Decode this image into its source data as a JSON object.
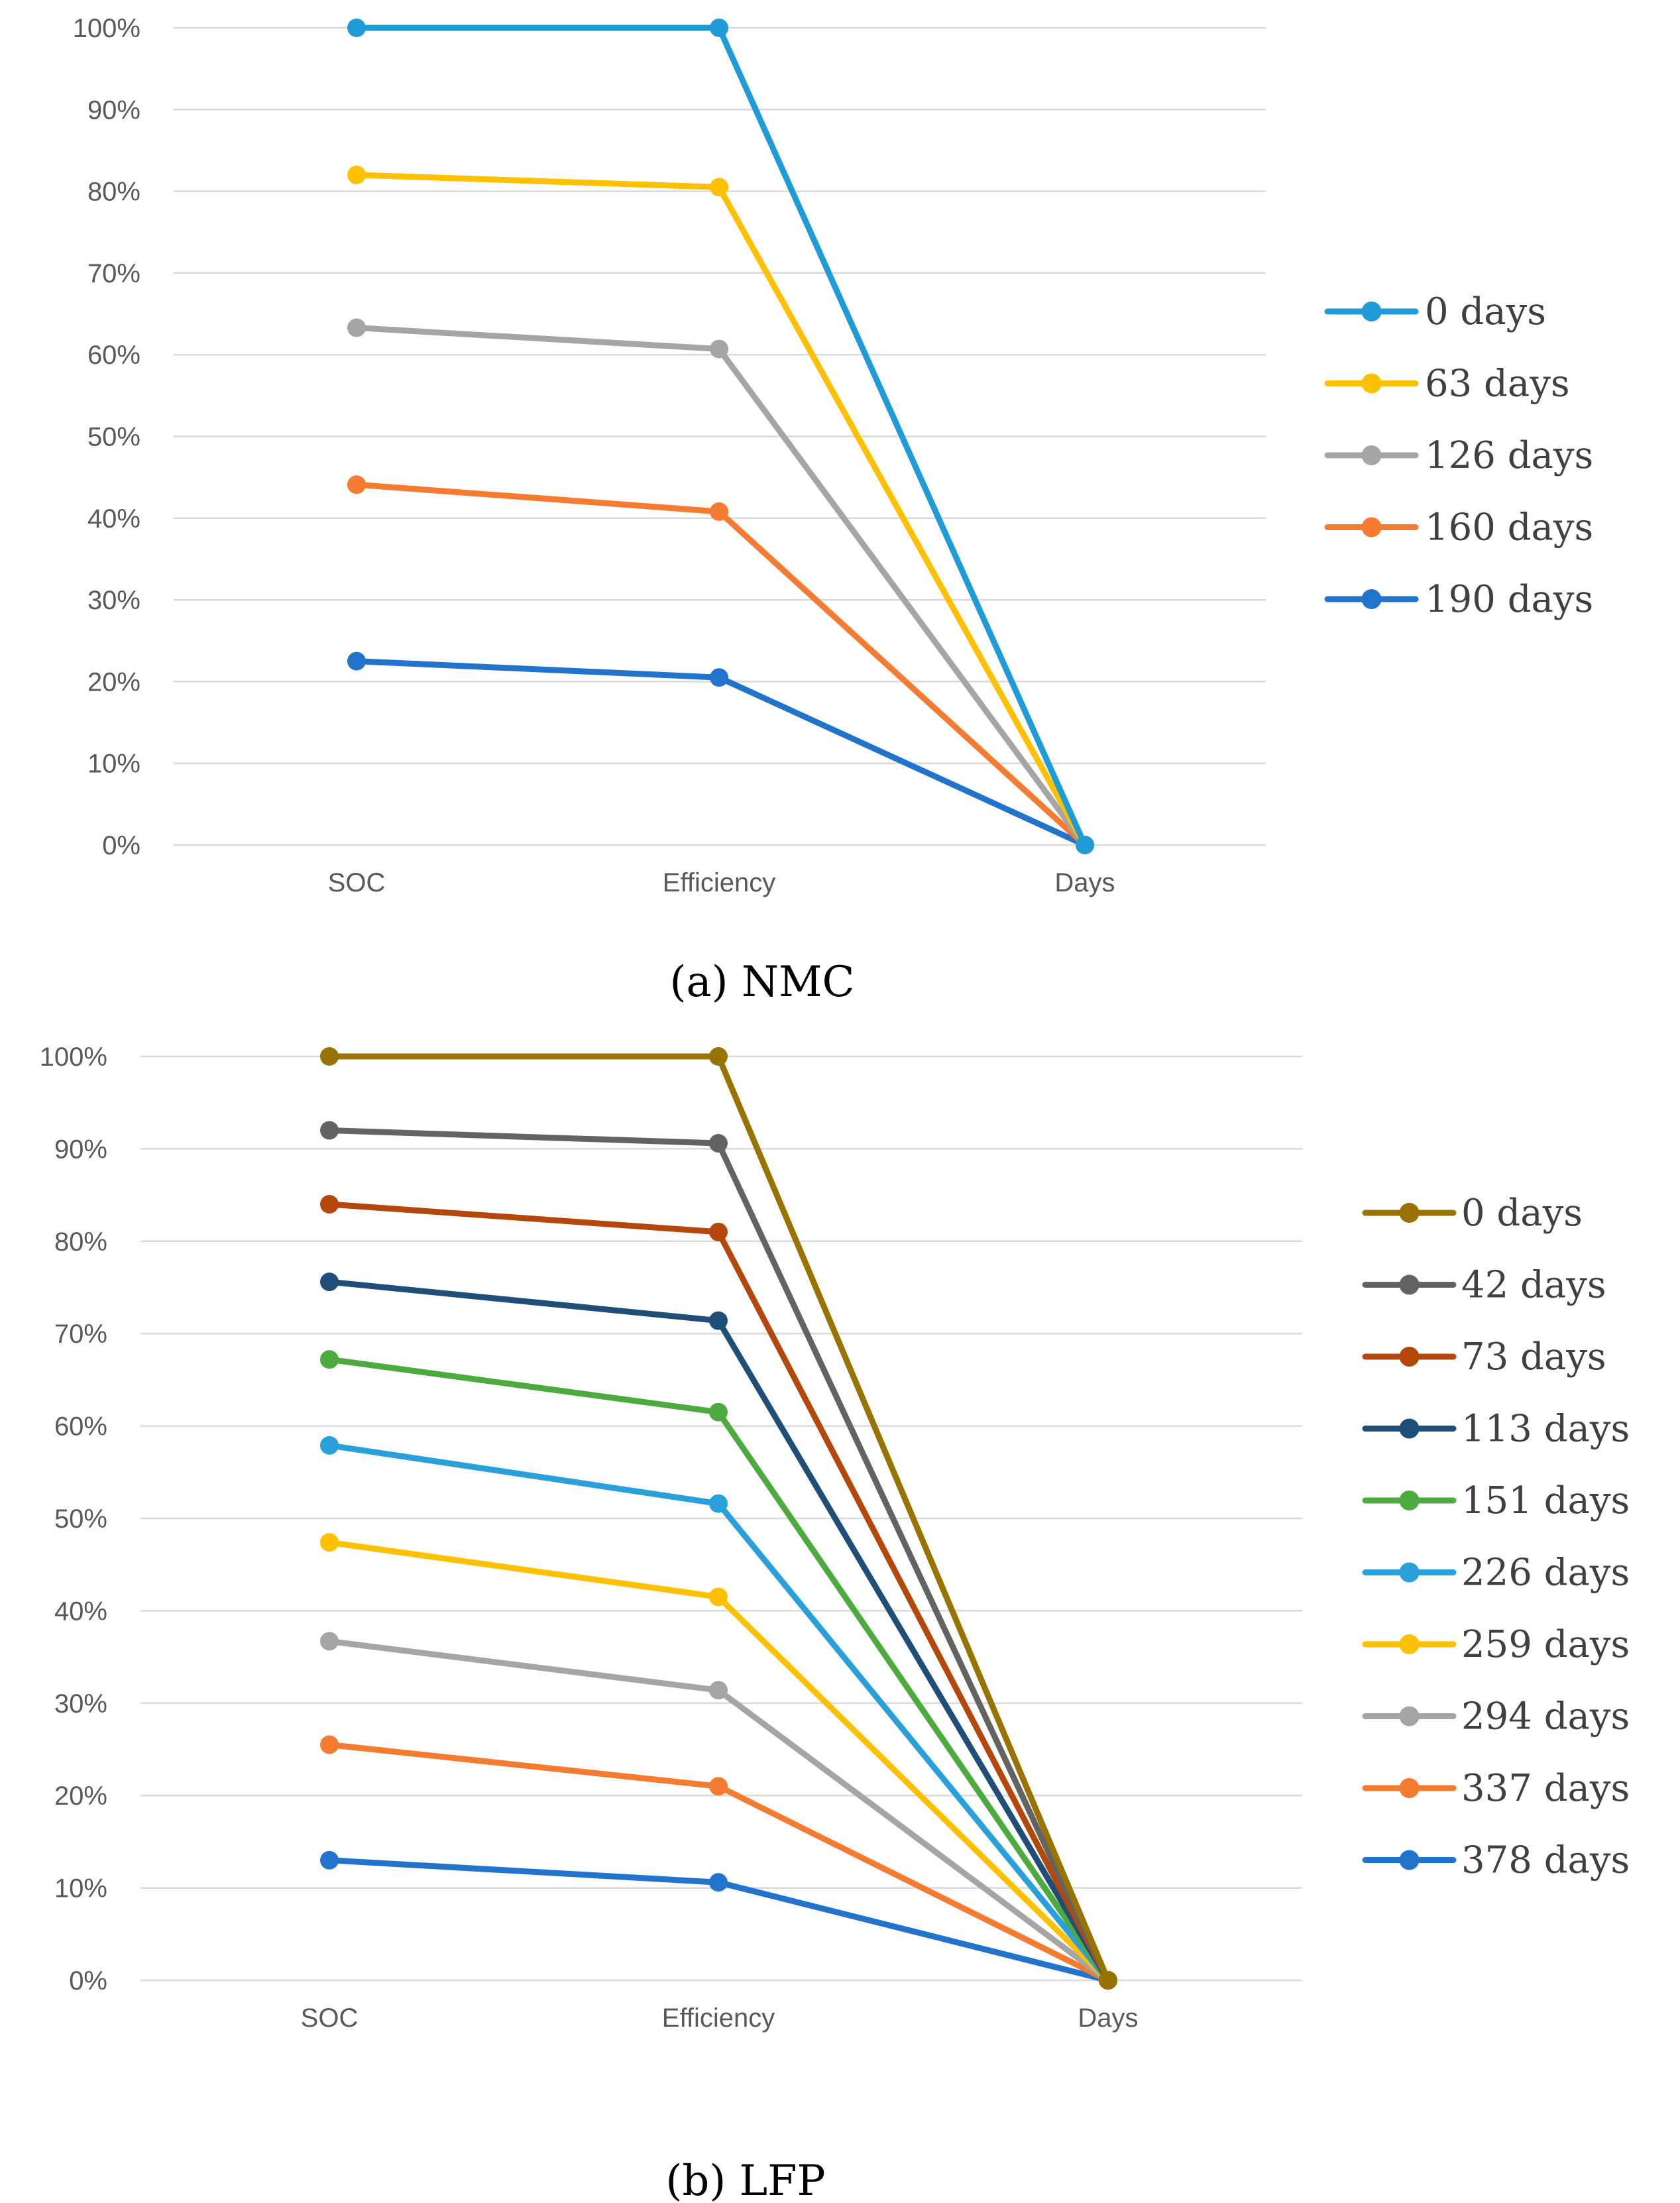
{
  "chart_data": [
    {
      "type": "line",
      "caption": "(a) NMC",
      "categories": [
        "SOC",
        "Efficiency",
        "Days"
      ],
      "ylim": [
        0,
        100
      ],
      "ytick_labels": [
        "0%",
        "10%",
        "20%",
        "30%",
        "40%",
        "50%",
        "60%",
        "70%",
        "80%",
        "90%",
        "100%"
      ],
      "grid": true,
      "legend_position": "right",
      "series": [
        {
          "name": "0 days",
          "color": "#1F9BD7",
          "values": [
            100,
            100,
            0
          ]
        },
        {
          "name": "63 days",
          "color": "#FFC000",
          "values": [
            82,
            80.5,
            0
          ]
        },
        {
          "name": "126 days",
          "color": "#A5A5A5",
          "values": [
            63.3,
            60.7,
            0
          ]
        },
        {
          "name": "160 days",
          "color": "#F47B30",
          "values": [
            44.1,
            40.8,
            0
          ]
        },
        {
          "name": "190 days",
          "color": "#2273CC",
          "values": [
            22.5,
            20.5,
            0
          ]
        }
      ]
    },
    {
      "type": "line",
      "caption": "(b) LFP",
      "categories": [
        "SOC",
        "Efficiency",
        "Days"
      ],
      "ylim": [
        0,
        100
      ],
      "ytick_labels": [
        "0%",
        "10%",
        "20%",
        "30%",
        "40%",
        "50%",
        "60%",
        "70%",
        "80%",
        "90%",
        "100%"
      ],
      "grid": true,
      "legend_position": "right",
      "series": [
        {
          "name": "0 days",
          "color": "#997300",
          "values": [
            100,
            100,
            0
          ]
        },
        {
          "name": "42 days",
          "color": "#636363",
          "values": [
            92,
            90.6,
            0
          ]
        },
        {
          "name": "73 days",
          "color": "#B4480C",
          "values": [
            84,
            81,
            0
          ]
        },
        {
          "name": "113 days",
          "color": "#1F4E79",
          "values": [
            75.6,
            71.4,
            0
          ]
        },
        {
          "name": "151 days",
          "color": "#4DAA3F",
          "values": [
            67.2,
            61.5,
            0
          ]
        },
        {
          "name": "226 days",
          "color": "#2AA0DB",
          "values": [
            57.9,
            51.6,
            0
          ]
        },
        {
          "name": "259 days",
          "color": "#FFC000",
          "values": [
            47.4,
            41.5,
            0
          ]
        },
        {
          "name": "294 days",
          "color": "#A5A5A5",
          "values": [
            36.7,
            31.4,
            0
          ]
        },
        {
          "name": "337 days",
          "color": "#F47B30",
          "values": [
            25.5,
            21,
            0
          ]
        },
        {
          "name": "378 days",
          "color": "#2273CC",
          "values": [
            13,
            10.6,
            0
          ]
        }
      ]
    }
  ]
}
